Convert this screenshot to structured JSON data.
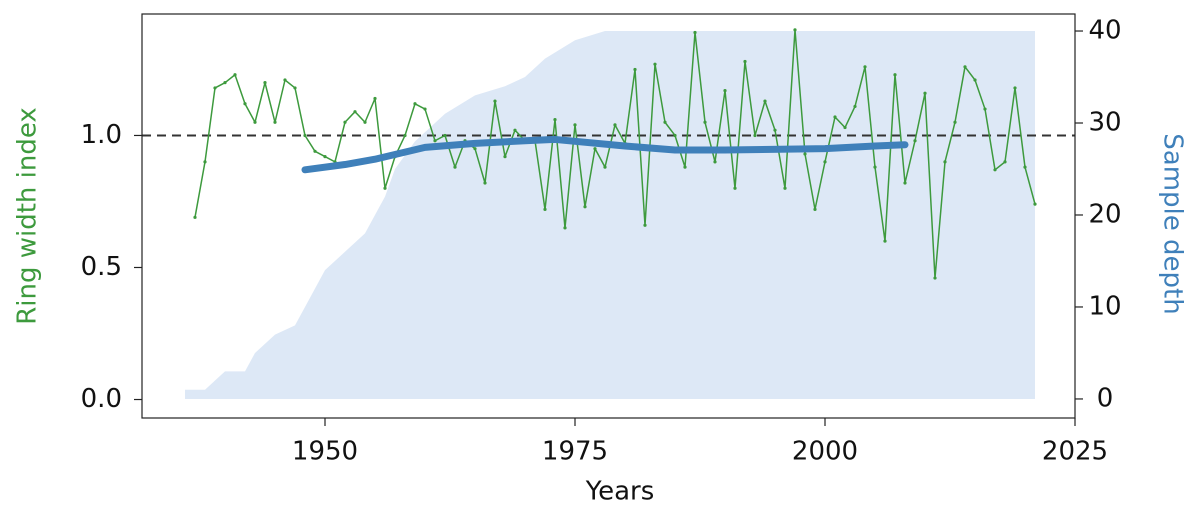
{
  "chart_data": {
    "type": "line",
    "xlabel": "Years",
    "ylabel": "Ring width index",
    "y2label": "Sample depth",
    "ylabel_color": "#3d9a3d",
    "y2label_color": "#3f80ba",
    "xlim": [
      1931.7,
      2025
    ],
    "xticks": [
      1950,
      1975,
      2000,
      2025
    ],
    "ylim": [
      -0.07,
      1.46
    ],
    "yticks": [
      {
        "value": 0,
        "label": "0.0"
      },
      0.5,
      {
        "value": 1,
        "label": "1.0"
      }
    ],
    "y2lim": [
      -2.07,
      41.85
    ],
    "y2ticks": [
      0,
      10,
      20,
      30,
      40
    ],
    "hline": 1,
    "series": [
      {
        "type": "area",
        "axis": "y2",
        "color": "#dde8f6",
        "x": [
          1936,
          1938,
          1939,
          1940,
          1942,
          1943,
          1945,
          1947,
          1948,
          1950,
          1952,
          1954,
          1956,
          1957,
          1959,
          1962,
          1965,
          1968,
          1970,
          1972,
          1975,
          1978,
          2021
        ],
        "values": [
          1,
          1,
          2,
          3,
          3,
          5,
          7,
          8,
          10,
          14,
          16,
          18,
          22,
          25,
          28,
          31,
          33,
          34,
          35,
          37,
          39,
          40,
          40
        ]
      },
      {
        "type": "line",
        "color": "#3d9a3d",
        "width": 1.5,
        "markers": true,
        "x": [
          1937,
          1938,
          1939,
          1940,
          1941,
          1942,
          1943,
          1944,
          1945,
          1946,
          1947,
          1948,
          1949,
          1950,
          1951,
          1952,
          1953,
          1954,
          1955,
          1956,
          1957,
          1958,
          1959,
          1960,
          1961,
          1962,
          1963,
          1964,
          1965,
          1966,
          1967,
          1968,
          1969,
          1970,
          1971,
          1972,
          1973,
          1974,
          1975,
          1976,
          1977,
          1978,
          1979,
          1980,
          1981,
          1982,
          1983,
          1984,
          1985,
          1986,
          1987,
          1988,
          1989,
          1990,
          1991,
          1992,
          1993,
          1994,
          1995,
          1996,
          1997,
          1998,
          1999,
          2000,
          2001,
          2002,
          2003,
          2004,
          2005,
          2006,
          2007,
          2008,
          2009,
          2010,
          2011,
          2012,
          2013,
          2014,
          2015,
          2016,
          2017,
          2018,
          2019,
          2020,
          2021
        ],
        "values": [
          0.69,
          0.9,
          1.18,
          1.2,
          1.23,
          1.12,
          1.05,
          1.2,
          1.05,
          1.21,
          1.18,
          1.0,
          0.94,
          0.92,
          0.9,
          1.05,
          1.09,
          1.05,
          1.14,
          0.8,
          0.92,
          1.0,
          1.12,
          1.1,
          0.98,
          1.0,
          0.88,
          0.98,
          0.95,
          0.82,
          1.13,
          0.92,
          1.02,
          0.98,
          0.98,
          0.72,
          1.06,
          0.65,
          1.04,
          0.73,
          0.95,
          0.88,
          1.04,
          0.97,
          1.25,
          0.66,
          1.27,
          1.05,
          1.0,
          0.88,
          1.39,
          1.05,
          0.9,
          1.17,
          0.8,
          1.28,
          1.0,
          1.13,
          1.02,
          0.8,
          1.4,
          0.93,
          0.72,
          0.9,
          1.07,
          1.03,
          1.11,
          1.26,
          0.88,
          0.6,
          1.23,
          0.82,
          0.98,
          1.16,
          0.46,
          0.9,
          1.05,
          1.26,
          1.21,
          1.1,
          0.87,
          0.9,
          1.18,
          0.88,
          0.74
        ]
      },
      {
        "type": "line",
        "color": "#3f80ba",
        "width": 7,
        "markers": false,
        "x": [
          1948,
          1952,
          1955,
          1960,
          1965,
          1970,
          1973,
          1980,
          1985,
          1990,
          2000,
          2005,
          2008
        ],
        "values": [
          0.87,
          0.89,
          0.91,
          0.955,
          0.97,
          0.98,
          0.985,
          0.96,
          0.945,
          0.945,
          0.95,
          0.96,
          0.965
        ]
      }
    ]
  }
}
